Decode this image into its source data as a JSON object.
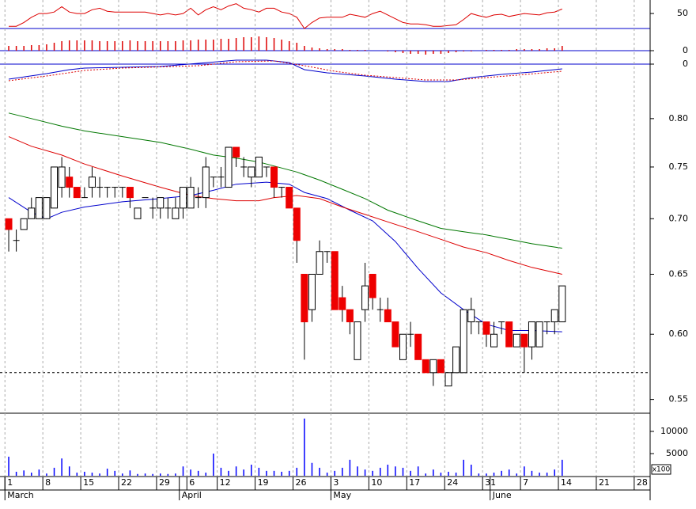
{
  "chart_data": [
    {
      "type": "line",
      "xlim": [
        -1.15,
        84.6
      ],
      "ylim": [
        30,
        68
      ],
      "yticks": [
        50
      ],
      "series": [
        {
          "color": "#dd0000",
          "x": [
            0,
            1,
            2,
            3,
            4,
            5,
            6,
            7,
            8,
            9,
            10,
            11,
            12,
            13,
            14,
            15,
            16,
            17,
            18,
            19,
            20,
            21,
            22,
            23,
            24,
            25,
            26,
            27,
            28,
            29,
            30,
            31,
            32,
            33,
            34,
            35,
            36,
            37,
            38,
            39,
            40,
            41,
            42,
            43,
            44,
            45,
            46,
            47,
            48,
            49,
            50,
            51,
            52,
            53,
            54,
            55,
            56,
            57,
            58,
            59,
            60,
            61,
            62,
            63,
            64,
            65,
            66,
            67,
            68,
            69,
            70,
            71,
            72,
            73
          ],
          "values": [
            33,
            33,
            38,
            45,
            50,
            50,
            52,
            59,
            52,
            50,
            50,
            55,
            57,
            53,
            52,
            52,
            52,
            52,
            52,
            50,
            48,
            50,
            48,
            50,
            57,
            48,
            55,
            59,
            55,
            60,
            63,
            57,
            55,
            52,
            57,
            57,
            52,
            50,
            45,
            30,
            38,
            44,
            45,
            45,
            45,
            49,
            47,
            45,
            50,
            53,
            48,
            43,
            38,
            36,
            36,
            35,
            33,
            33,
            34,
            35,
            42,
            50,
            47,
            45,
            48,
            49,
            46,
            48,
            50,
            49,
            48,
            51,
            52,
            56
          ]
        }
      ]
    },
    {
      "type": "bar",
      "color": "#dd0000",
      "xlim": [
        -1.15,
        84.6
      ],
      "ylim": [
        -0.0008,
        0.0028
      ],
      "yticks": [
        0
      ],
      "x": [
        0,
        1,
        2,
        3,
        4,
        5,
        6,
        7,
        8,
        9,
        10,
        11,
        12,
        13,
        14,
        15,
        16,
        17,
        18,
        19,
        20,
        21,
        22,
        23,
        24,
        25,
        26,
        27,
        28,
        29,
        30,
        31,
        32,
        33,
        34,
        35,
        36,
        37,
        38,
        39,
        40,
        41,
        42,
        43,
        44,
        45,
        46,
        47,
        48,
        49,
        50,
        51,
        52,
        53,
        54,
        55,
        56,
        57,
        58,
        59,
        60,
        61,
        62,
        63,
        64,
        65,
        66,
        67,
        68,
        69,
        70,
        71,
        72,
        73
      ],
      "values": [
        0.0006,
        0.0006,
        0.0006,
        0.0007,
        0.0007,
        0.0008,
        0.001,
        0.0012,
        0.0013,
        0.0013,
        0.0013,
        0.0013,
        0.0012,
        0.0012,
        0.0012,
        0.0012,
        0.0013,
        0.0012,
        0.0012,
        0.0012,
        0.0012,
        0.0012,
        0.0012,
        0.0013,
        0.0013,
        0.0014,
        0.0014,
        0.0014,
        0.0015,
        0.0015,
        0.0016,
        0.0017,
        0.0017,
        0.0018,
        0.0017,
        0.0016,
        0.0014,
        0.0012,
        0.001,
        0.0006,
        0.0004,
        0.0003,
        0.0002,
        0.0002,
        0.0002,
        0.0001,
        0.0001,
        0.0001,
        0,
        0,
        -0.0001,
        -0.0002,
        -0.0003,
        -0.0004,
        -0.0004,
        -0.0005,
        -0.0004,
        -0.0004,
        -0.0003,
        -0.0002,
        -0.0001,
        -0.0001,
        0,
        0.0001,
        0.0001,
        0.0001,
        0.0001,
        0.0002,
        0.0002,
        0.0002,
        0.0002,
        0.0003,
        0.0003,
        0.0006
      ]
    },
    {
      "type": "line",
      "xlim": [
        -1.15,
        84.6
      ],
      "ylim": [
        -0.025,
        0.017
      ],
      "yticks": [
        0
      ],
      "series": [
        {
          "color": "#0000cc",
          "x": [
            0,
            5,
            8,
            10,
            15,
            20,
            25,
            30,
            34,
            37,
            39,
            42,
            47,
            51,
            55,
            58,
            61,
            65,
            69,
            73
          ],
          "values": [
            -0.019,
            -0.012,
            -0.007,
            -0.005,
            -0.004,
            -0.003,
            0.001,
            0.005,
            0.005,
            0.002,
            -0.007,
            -0.011,
            -0.015,
            -0.019,
            -0.022,
            -0.022,
            -0.017,
            -0.013,
            -0.01,
            -0.006
          ]
        },
        {
          "color": "#dd0000",
          "style": "dotted",
          "x": [
            0,
            5,
            10,
            15,
            25,
            30,
            35,
            39,
            43,
            47,
            51,
            55,
            59,
            63,
            67,
            73
          ],
          "values": [
            -0.021,
            -0.015,
            -0.008,
            -0.005,
            -0.002,
            0.003,
            0.004,
            -0.002,
            -0.009,
            -0.014,
            -0.017,
            -0.02,
            -0.02,
            -0.017,
            -0.014,
            -0.009
          ]
        }
      ]
    },
    {
      "type": "candlestick",
      "log": true,
      "xlim": [
        -1.15,
        84.6
      ],
      "ylim": [
        0.54,
        0.854
      ],
      "yticks": [
        {
          "value": 0.8,
          "label": "0.80"
        },
        {
          "value": 0.75,
          "label": "0.75"
        },
        {
          "value": 0.7,
          "label": "0.70"
        },
        {
          "value": 0.65,
          "label": "0.65"
        },
        {
          "value": 0.6,
          "label": "0.60"
        },
        {
          "value": 0.55,
          "label": "0.55"
        }
      ],
      "up_color": "#ffffff",
      "down_color": "#ee0000",
      "hline": 0.57,
      "x": [
        0,
        1,
        2,
        3,
        4,
        5,
        6,
        7,
        8,
        9,
        10,
        11,
        12,
        13,
        14,
        15,
        16,
        17,
        18,
        19,
        20,
        21,
        22,
        23,
        24,
        25,
        26,
        27,
        28,
        29,
        30,
        31,
        32,
        33,
        34,
        35,
        36,
        37,
        38,
        39,
        40,
        41,
        42,
        43,
        44,
        45,
        46,
        47,
        48,
        49,
        50,
        51,
        52,
        53,
        54,
        55,
        56,
        57,
        58,
        59,
        60,
        61,
        62,
        63,
        64,
        65,
        66,
        67,
        68,
        69,
        70,
        71,
        72,
        73
      ],
      "open": [
        0.7,
        0.68,
        0.69,
        0.7,
        0.7,
        0.7,
        0.71,
        0.73,
        0.74,
        0.73,
        0.72,
        0.73,
        0.73,
        0.73,
        0.73,
        0.73,
        0.73,
        0.7,
        0.72,
        0.71,
        0.71,
        0.71,
        0.7,
        0.71,
        0.71,
        0.72,
        0.72,
        0.74,
        0.74,
        0.73,
        0.77,
        0.75,
        0.74,
        0.74,
        0.75,
        0.75,
        0.73,
        0.73,
        0.71,
        0.65,
        0.62,
        0.65,
        0.67,
        0.67,
        0.63,
        0.62,
        0.58,
        0.62,
        0.65,
        0.62,
        0.62,
        0.61,
        0.58,
        0.6,
        0.6,
        0.58,
        0.57,
        0.58,
        0.56,
        0.57,
        0.57,
        0.61,
        0.61,
        0.61,
        0.59,
        0.61,
        0.61,
        0.59,
        0.6,
        0.59,
        0.59,
        0.61,
        0.61,
        0.61
      ],
      "high": [
        0.7,
        0.69,
        0.7,
        0.72,
        0.72,
        0.72,
        0.75,
        0.76,
        0.75,
        0.73,
        0.73,
        0.75,
        0.74,
        0.73,
        0.73,
        0.73,
        0.73,
        0.71,
        0.72,
        0.72,
        0.72,
        0.72,
        0.72,
        0.73,
        0.74,
        0.73,
        0.76,
        0.74,
        0.75,
        0.77,
        0.77,
        0.76,
        0.75,
        0.76,
        0.75,
        0.75,
        0.73,
        0.73,
        0.71,
        0.65,
        0.65,
        0.68,
        0.67,
        0.67,
        0.64,
        0.62,
        0.61,
        0.66,
        0.65,
        0.63,
        0.63,
        0.61,
        0.6,
        0.61,
        0.6,
        0.58,
        0.58,
        0.58,
        0.57,
        0.59,
        0.62,
        0.63,
        0.61,
        0.61,
        0.61,
        0.61,
        0.61,
        0.6,
        0.6,
        0.61,
        0.61,
        0.61,
        0.62,
        0.64
      ],
      "low": [
        0.67,
        0.67,
        0.69,
        0.7,
        0.7,
        0.7,
        0.71,
        0.72,
        0.72,
        0.72,
        0.72,
        0.72,
        0.72,
        0.72,
        0.72,
        0.72,
        0.71,
        0.7,
        0.72,
        0.7,
        0.7,
        0.7,
        0.7,
        0.7,
        0.71,
        0.71,
        0.71,
        0.73,
        0.73,
        0.73,
        0.75,
        0.74,
        0.73,
        0.74,
        0.74,
        0.72,
        0.72,
        0.71,
        0.66,
        0.58,
        0.61,
        0.65,
        0.66,
        0.62,
        0.61,
        0.6,
        0.58,
        0.61,
        0.62,
        0.61,
        0.61,
        0.59,
        0.58,
        0.59,
        0.58,
        0.57,
        0.56,
        0.57,
        0.56,
        0.57,
        0.57,
        0.6,
        0.6,
        0.59,
        0.59,
        0.6,
        0.59,
        0.59,
        0.57,
        0.58,
        0.59,
        0.6,
        0.6,
        0.61
      ],
      "close": [
        0.69,
        0.68,
        0.7,
        0.71,
        0.72,
        0.72,
        0.75,
        0.75,
        0.73,
        0.72,
        0.72,
        0.74,
        0.73,
        0.73,
        0.73,
        0.73,
        0.72,
        0.71,
        0.72,
        0.71,
        0.72,
        0.71,
        0.71,
        0.73,
        0.73,
        0.72,
        0.75,
        0.74,
        0.74,
        0.77,
        0.76,
        0.75,
        0.75,
        0.76,
        0.75,
        0.73,
        0.73,
        0.71,
        0.68,
        0.61,
        0.65,
        0.67,
        0.67,
        0.62,
        0.62,
        0.61,
        0.61,
        0.64,
        0.63,
        0.62,
        0.61,
        0.59,
        0.6,
        0.6,
        0.58,
        0.57,
        0.58,
        0.57,
        0.57,
        0.59,
        0.62,
        0.62,
        0.61,
        0.6,
        0.6,
        0.61,
        0.59,
        0.6,
        0.59,
        0.61,
        0.61,
        0.61,
        0.62,
        0.64
      ],
      "lines": [
        {
          "color": "#0000cc",
          "x": [
            0,
            3,
            5,
            7,
            10,
            15,
            20,
            24,
            27,
            30,
            34,
            37,
            39,
            42,
            45,
            48,
            51,
            54,
            57,
            60,
            63,
            66,
            69,
            73
          ],
          "values": [
            0.72,
            0.706,
            0.7,
            0.706,
            0.711,
            0.716,
            0.719,
            0.722,
            0.727,
            0.733,
            0.735,
            0.733,
            0.725,
            0.719,
            0.708,
            0.698,
            0.679,
            0.655,
            0.634,
            0.62,
            0.608,
            0.603,
            0.603,
            0.602
          ]
        },
        {
          "color": "#dd0000",
          "x": [
            0,
            3,
            7,
            10,
            15,
            20,
            24,
            27,
            30,
            33,
            35,
            38,
            41,
            44,
            47,
            50,
            54,
            57,
            60,
            63,
            66,
            69,
            73
          ],
          "values": [
            0.781,
            0.771,
            0.762,
            0.753,
            0.741,
            0.73,
            0.722,
            0.719,
            0.717,
            0.717,
            0.72,
            0.722,
            0.719,
            0.711,
            0.704,
            0.697,
            0.688,
            0.681,
            0.674,
            0.669,
            0.662,
            0.656,
            0.65
          ]
        },
        {
          "color": "#007700",
          "x": [
            0,
            3,
            7,
            10,
            15,
            20,
            24,
            27,
            30,
            33,
            35,
            38,
            41,
            44,
            47,
            50,
            54,
            57,
            60,
            63,
            66,
            69,
            73
          ],
          "values": [
            0.806,
            0.8,
            0.792,
            0.787,
            0.781,
            0.775,
            0.768,
            0.762,
            0.759,
            0.755,
            0.751,
            0.745,
            0.737,
            0.728,
            0.719,
            0.708,
            0.698,
            0.691,
            0.688,
            0.685,
            0.681,
            0.677,
            0.673
          ]
        }
      ]
    },
    {
      "type": "bar",
      "color": "#0000ff",
      "xlim": [
        -1.15,
        84.6
      ],
      "ylim": [
        0,
        14100
      ],
      "yticks": [
        10000,
        5000
      ],
      "unit_label": "x100",
      "grid": true,
      "x": [
        0,
        1,
        2,
        3,
        4,
        5,
        6,
        7,
        8,
        9,
        10,
        11,
        12,
        13,
        14,
        15,
        16,
        17,
        18,
        19,
        20,
        21,
        22,
        23,
        24,
        25,
        26,
        27,
        28,
        29,
        30,
        31,
        32,
        33,
        34,
        35,
        36,
        37,
        38,
        39,
        40,
        41,
        42,
        43,
        44,
        45,
        46,
        47,
        48,
        49,
        50,
        51,
        52,
        53,
        54,
        55,
        56,
        57,
        58,
        59,
        60,
        61,
        62,
        63,
        64,
        65,
        66,
        67,
        68,
        69,
        70,
        71,
        72,
        73
      ],
      "values": [
        4300,
        900,
        1200,
        700,
        1400,
        500,
        1800,
        3900,
        2100,
        700,
        900,
        700,
        500,
        1600,
        1100,
        500,
        1200,
        400,
        500,
        400,
        500,
        400,
        500,
        2100,
        1400,
        1100,
        700,
        5000,
        1800,
        1100,
        2100,
        1400,
        2500,
        1800,
        1100,
        1100,
        900,
        1100,
        1800,
        12900,
        2900,
        1800,
        700,
        1100,
        1800,
        3600,
        2100,
        1400,
        1100,
        1800,
        2500,
        2100,
        1800,
        1100,
        2100,
        500,
        1400,
        700,
        900,
        700,
        3600,
        2500,
        500,
        500,
        700,
        1100,
        1400,
        500,
        2100,
        1100,
        700,
        700,
        1400,
        3600
      ],
      "xticks": [
        {
          "value": 0,
          "label": "1"
        },
        {
          "value": 5,
          "label": "8"
        },
        {
          "value": 10,
          "label": "15"
        },
        {
          "value": 15,
          "label": "22"
        },
        {
          "value": 20,
          "label": "29"
        },
        {
          "value": 24,
          "label": "6"
        },
        {
          "value": 28,
          "label": "12"
        },
        {
          "value": 33,
          "label": "19"
        },
        {
          "value": 38,
          "label": "26"
        },
        {
          "value": 43,
          "label": "3"
        },
        {
          "value": 48,
          "label": "10"
        },
        {
          "value": 53,
          "label": "17"
        },
        {
          "value": 58,
          "label": "24"
        },
        {
          "value": 63,
          "label": "31"
        },
        {
          "value": 68,
          "label": "7"
        },
        {
          "value": 73,
          "label": "14"
        },
        {
          "value": 78,
          "label": "21"
        },
        {
          "value": 83,
          "label": "28"
        }
      ],
      "months": [
        {
          "value": 0,
          "label": "March"
        },
        {
          "value": 23,
          "label": "April"
        },
        {
          "value": 43,
          "label": "May"
        },
        {
          "value": 64,
          "label": "June"
        }
      ]
    }
  ]
}
